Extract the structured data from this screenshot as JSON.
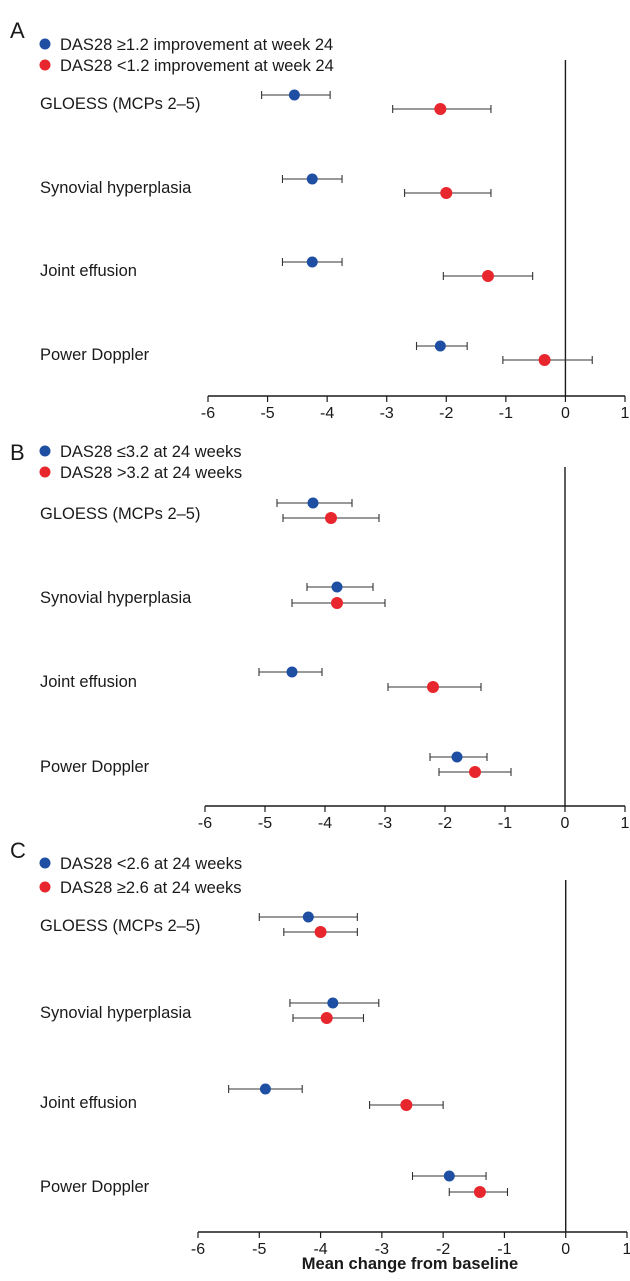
{
  "colors": {
    "blue": "#1f4fa3",
    "red": "#e8262d",
    "axis": "#1a1a1a"
  },
  "xlabel": "Mean change from baseline",
  "chart_data": [
    {
      "panel": "A",
      "type": "scatter",
      "subtype": "forest",
      "legend_position": "top-left",
      "xlim": [
        -6,
        1
      ],
      "xticks": [
        "-6",
        "-5",
        "-4",
        "-3",
        "-2",
        "-1",
        "0",
        "1"
      ],
      "reference_line_x": 0,
      "categories": [
        "GLOESS (MCPs 2–5)",
        "Synovial hyperplasia",
        "Joint effusion",
        "Power Doppler"
      ],
      "series": [
        {
          "name": "DAS28 ≥1.2 improvement at week 24",
          "color": "blue",
          "points": [
            {
              "mean": -4.55,
              "ci": [
                -5.1,
                -3.95
              ]
            },
            {
              "mean": -4.25,
              "ci": [
                -4.75,
                -3.75
              ]
            },
            {
              "mean": -4.25,
              "ci": [
                -4.75,
                -3.75
              ]
            },
            {
              "mean": -2.1,
              "ci": [
                -2.5,
                -1.65
              ]
            }
          ]
        },
        {
          "name": "DAS28 <1.2 improvement at week 24",
          "color": "red",
          "points": [
            {
              "mean": -2.1,
              "ci": [
                -2.9,
                -1.25
              ]
            },
            {
              "mean": -2.0,
              "ci": [
                -2.7,
                -1.25
              ]
            },
            {
              "mean": -1.3,
              "ci": [
                -2.05,
                -0.55
              ]
            },
            {
              "mean": -0.35,
              "ci": [
                -1.05,
                0.45
              ]
            }
          ]
        }
      ]
    },
    {
      "panel": "B",
      "type": "scatter",
      "subtype": "forest",
      "legend_position": "top-left",
      "xlim": [
        -6,
        1
      ],
      "xticks": [
        "-6",
        "-5",
        "-4",
        "-3",
        "-2",
        "-1",
        "0",
        "1"
      ],
      "reference_line_x": 0,
      "categories": [
        "GLOESS (MCPs 2–5)",
        "Synovial hyperplasia",
        "Joint effusion",
        "Power Doppler"
      ],
      "series": [
        {
          "name": "DAS28 ≤3.2 at 24 weeks",
          "color": "blue",
          "points": [
            {
              "mean": -4.2,
              "ci": [
                -4.8,
                -3.55
              ]
            },
            {
              "mean": -3.8,
              "ci": [
                -4.3,
                -3.2
              ]
            },
            {
              "mean": -4.55,
              "ci": [
                -5.1,
                -4.05
              ]
            },
            {
              "mean": -1.8,
              "ci": [
                -2.25,
                -1.3
              ]
            }
          ]
        },
        {
          "name": "DAS28 >3.2 at 24 weeks",
          "color": "red",
          "points": [
            {
              "mean": -3.9,
              "ci": [
                -4.7,
                -3.1
              ]
            },
            {
              "mean": -3.8,
              "ci": [
                -4.55,
                -3.0
              ]
            },
            {
              "mean": -2.2,
              "ci": [
                -2.95,
                -1.4
              ]
            },
            {
              "mean": -1.5,
              "ci": [
                -2.1,
                -0.9
              ]
            }
          ]
        }
      ]
    },
    {
      "panel": "C",
      "type": "scatter",
      "subtype": "forest",
      "legend_position": "top-left",
      "xlim": [
        -6,
        1
      ],
      "xticks": [
        "-6",
        "-5",
        "-4",
        "-3",
        "-2",
        "-1",
        "0",
        "1"
      ],
      "reference_line_x": 0,
      "xlabel": "Mean change from baseline",
      "categories": [
        "GLOESS (MCPs 2–5)",
        "Synovial hyperplasia",
        "Joint effusion",
        "Power Doppler"
      ],
      "series": [
        {
          "name": "DAS28 <2.6 at 24 weeks",
          "color": "blue",
          "points": [
            {
              "mean": -4.2,
              "ci": [
                -5.0,
                -3.4
              ]
            },
            {
              "mean": -3.8,
              "ci": [
                -4.5,
                -3.05
              ]
            },
            {
              "mean": -4.9,
              "ci": [
                -5.5,
                -4.3
              ]
            },
            {
              "mean": -1.9,
              "ci": [
                -2.5,
                -1.3
              ]
            }
          ]
        },
        {
          "name": "DAS28 ≥2.6 at 24 weeks",
          "color": "red",
          "points": [
            {
              "mean": -4.0,
              "ci": [
                -4.6,
                -3.4
              ]
            },
            {
              "mean": -3.9,
              "ci": [
                -4.45,
                -3.3
              ]
            },
            {
              "mean": -2.6,
              "ci": [
                -3.2,
                -2.0
              ]
            },
            {
              "mean": -1.4,
              "ci": [
                -1.9,
                -0.95
              ]
            }
          ]
        }
      ]
    }
  ]
}
